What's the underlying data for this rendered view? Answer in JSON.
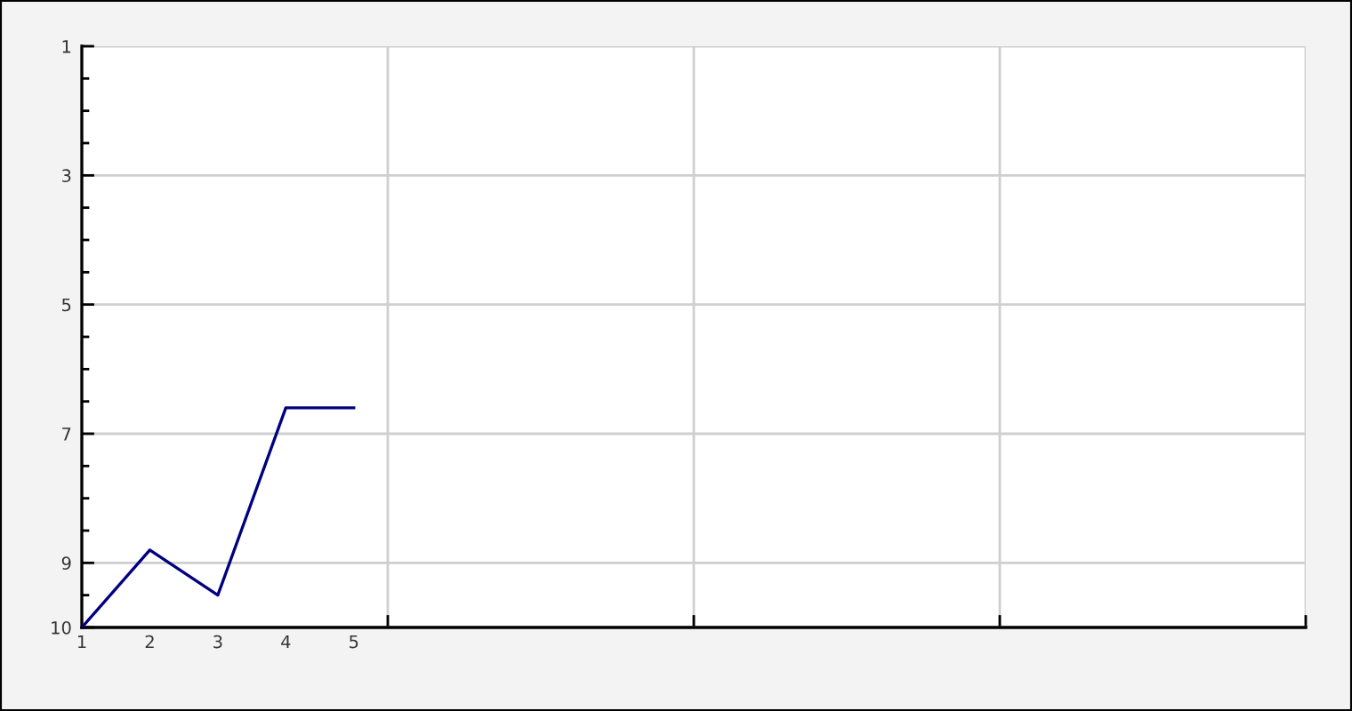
{
  "chart_data": {
    "type": "line",
    "x": [
      1,
      2,
      3,
      4,
      5
    ],
    "values": [
      10,
      8.8,
      9.5,
      6.6,
      6.6
    ],
    "color": "#000080",
    "line_style": "solid",
    "xlim": [
      1,
      19
    ],
    "xticks": [
      1,
      2,
      3,
      4,
      5,
      {
        "value": 5.5,
        "label": null
      },
      {
        "value": 10,
        "label": null
      },
      {
        "value": 14.5,
        "label": null
      },
      {
        "value": 19,
        "label": null
      }
    ],
    "ylim": [
      10,
      1
    ],
    "yticks": [
      1,
      3,
      5,
      7,
      9,
      10
    ],
    "grid": true
  }
}
